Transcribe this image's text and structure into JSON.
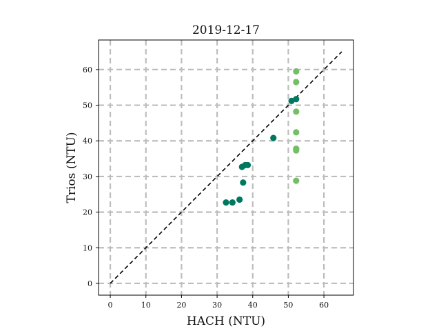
{
  "chart_data": {
    "type": "scatter",
    "title": "2019-12-17",
    "xlabel": "HACH (NTU)",
    "ylabel": "Trios (NTU)",
    "xlim": [
      -3.3,
      68.3
    ],
    "ylim": [
      -3.3,
      68.3
    ],
    "xticks": [
      0,
      10,
      20,
      30,
      40,
      50,
      60
    ],
    "yticks": [
      0,
      10,
      20,
      30,
      40,
      50,
      60
    ],
    "grid": true,
    "reference_line": {
      "x": [
        0,
        65
      ],
      "y": [
        0,
        65
      ],
      "color": "#000000",
      "style": "dashed"
    },
    "series": [
      {
        "color": "#00785f",
        "points": [
          {
            "x": 32.5,
            "y": 22.7
          },
          {
            "x": 34.3,
            "y": 22.7
          },
          {
            "x": 36.3,
            "y": 23.5
          },
          {
            "x": 37.3,
            "y": 28.3
          },
          {
            "x": 37.0,
            "y": 32.7
          },
          {
            "x": 37.9,
            "y": 33.2
          },
          {
            "x": 38.6,
            "y": 33.2
          },
          {
            "x": 45.8,
            "y": 40.8
          },
          {
            "x": 50.9,
            "y": 51.2
          },
          {
            "x": 52.2,
            "y": 51.7
          }
        ]
      },
      {
        "color": "#74bf65",
        "points": [
          {
            "x": 52.2,
            "y": 59.5
          },
          {
            "x": 52.2,
            "y": 56.5
          },
          {
            "x": 52.2,
            "y": 48.2
          },
          {
            "x": 52.2,
            "y": 42.4
          },
          {
            "x": 52.2,
            "y": 37.8
          },
          {
            "x": 52.2,
            "y": 37.3
          },
          {
            "x": 52.2,
            "y": 28.8
          }
        ]
      }
    ]
  }
}
